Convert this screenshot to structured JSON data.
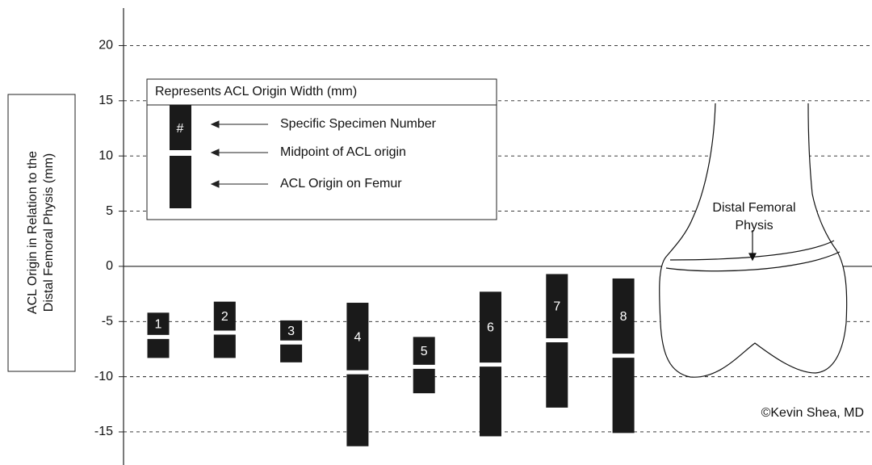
{
  "chart_data": {
    "type": "floating_bar",
    "ylabel_lines": [
      "ACL Origin in Relation to the",
      "Distal Femoral Physis (mm)"
    ],
    "categories": [
      "1",
      "2",
      "3",
      "4",
      "5",
      "6",
      "7",
      "8"
    ],
    "high": [
      -4.2,
      -3.2,
      -4.9,
      -3.3,
      -6.4,
      -2.3,
      -0.7,
      -1.1
    ],
    "midpoint": [
      -6.4,
      -6.0,
      -6.9,
      -9.6,
      -9.1,
      -8.9,
      -6.7,
      -8.1
    ],
    "low": [
      -8.3,
      -8.3,
      -8.7,
      -16.3,
      -11.5,
      -15.4,
      -12.8,
      -15.1
    ],
    "color": "#1a1a1a",
    "ylim": [
      -18,
      23.4
    ],
    "yticks": [
      20,
      15,
      10,
      5,
      0,
      -5,
      -10,
      -15
    ],
    "grid": true,
    "zero_line": true,
    "legend": {
      "title": "Represents ACL Origin Width (mm)",
      "symbol": "#",
      "items": [
        "Specific Specimen Number",
        "Midpoint of ACL origin",
        "ACL Origin on Femur"
      ]
    },
    "annotation_lines": [
      "Distal Femoral",
      "Physis"
    ],
    "credit": "©Kevin Shea, MD"
  }
}
